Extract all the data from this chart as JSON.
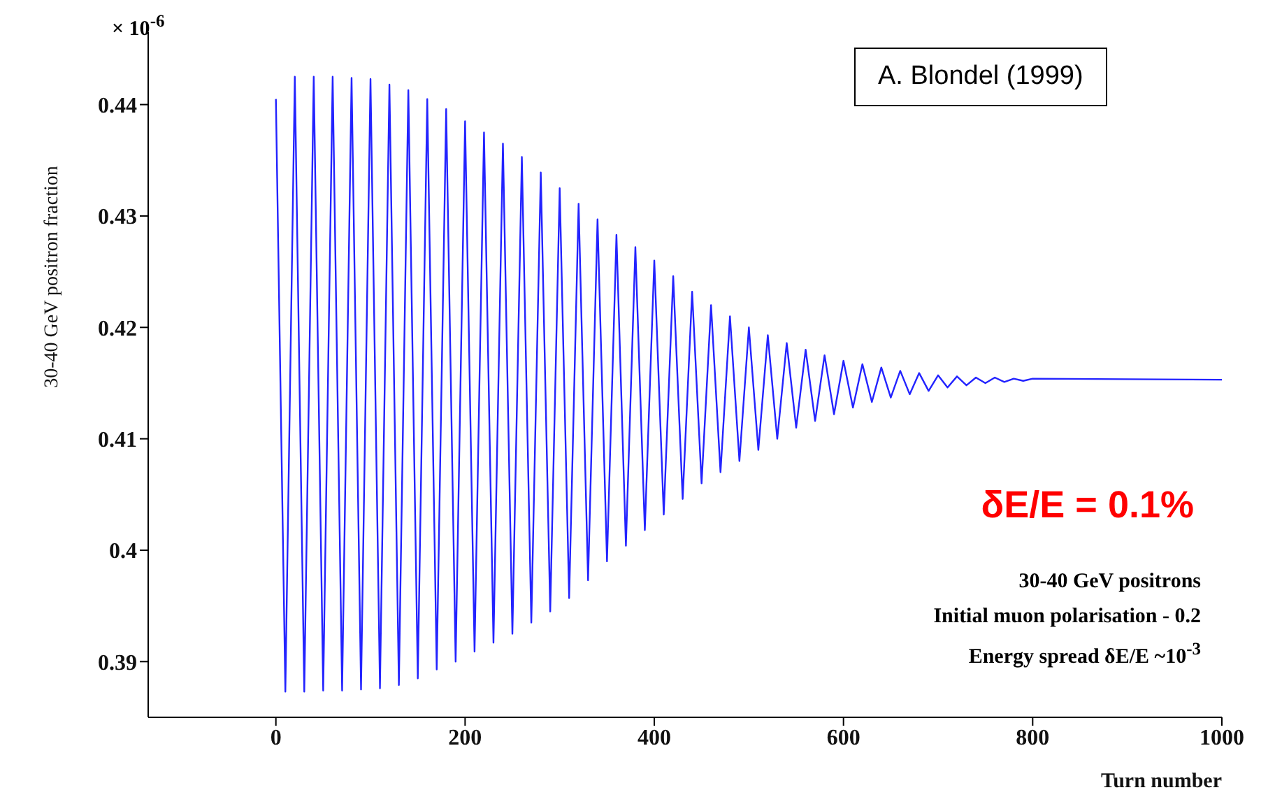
{
  "chart_data": {
    "type": "line",
    "xlabel": "Turn number",
    "ylabel": "30-40 GeV positron fraction",
    "annotations": [
      "× 10$^{-6}$",
      "A. Blondel (1999)",
      "δE/E = 0.1%",
      "30-40 GeV positrons",
      "Initial muon polarisation - 0.2",
      "Energy spread δE/E ~10$^{-3}$"
    ],
    "x": [
      0,
      10,
      20,
      30,
      40,
      50,
      60,
      70,
      80,
      90,
      100,
      110,
      120,
      130,
      140,
      150,
      160,
      170,
      180,
      190,
      200,
      210,
      220,
      230,
      240,
      250,
      260,
      270,
      280,
      290,
      300,
      310,
      320,
      330,
      340,
      350,
      360,
      370,
      380,
      390,
      400,
      410,
      420,
      430,
      440,
      450,
      460,
      470,
      480,
      490,
      500,
      510,
      520,
      530,
      540,
      550,
      560,
      570,
      580,
      590,
      600,
      610,
      620,
      630,
      640,
      650,
      660,
      670,
      680,
      690,
      700,
      710,
      720,
      730,
      740,
      750,
      760,
      770,
      780,
      790,
      800,
      1000
    ],
    "series": [
      {
        "color": "#2323ff",
        "values": [
          0.4405,
          0.3873,
          0.4425,
          0.3873,
          0.4425,
          0.3874,
          0.4425,
          0.3874,
          0.4424,
          0.3875,
          0.4423,
          0.3876,
          0.4418,
          0.3879,
          0.4413,
          0.3885,
          0.4405,
          0.3893,
          0.4396,
          0.39,
          0.4385,
          0.3909,
          0.4375,
          0.3917,
          0.4365,
          0.3925,
          0.4353,
          0.3935,
          0.4339,
          0.3945,
          0.4325,
          0.3957,
          0.4311,
          0.3973,
          0.4297,
          0.399,
          0.4283,
          0.4004,
          0.4272,
          0.4018,
          0.426,
          0.4032,
          0.4246,
          0.4046,
          0.4232,
          0.406,
          0.422,
          0.407,
          0.421,
          0.408,
          0.42,
          0.409,
          0.4193,
          0.41,
          0.4186,
          0.411,
          0.418,
          0.4116,
          0.4175,
          0.4122,
          0.417,
          0.4128,
          0.4167,
          0.4133,
          0.4164,
          0.4137,
          0.4161,
          0.414,
          0.4159,
          0.4143,
          0.4157,
          0.4146,
          0.4156,
          0.4148,
          0.4155,
          0.415,
          0.4155,
          0.4151,
          0.4154,
          0.4152,
          0.4154,
          0.4153
        ]
      }
    ],
    "xlim": [
      -135,
      1000
    ],
    "xticks": [
      0,
      200,
      400,
      600,
      800,
      1000
    ],
    "ylim": [
      0.385,
      0.4465
    ],
    "yticks": [
      0.39,
      0.4,
      0.41,
      0.42,
      0.43,
      0.44
    ],
    "grid": false,
    "legend": false,
    "marker": "none",
    "line_style": "solid"
  }
}
